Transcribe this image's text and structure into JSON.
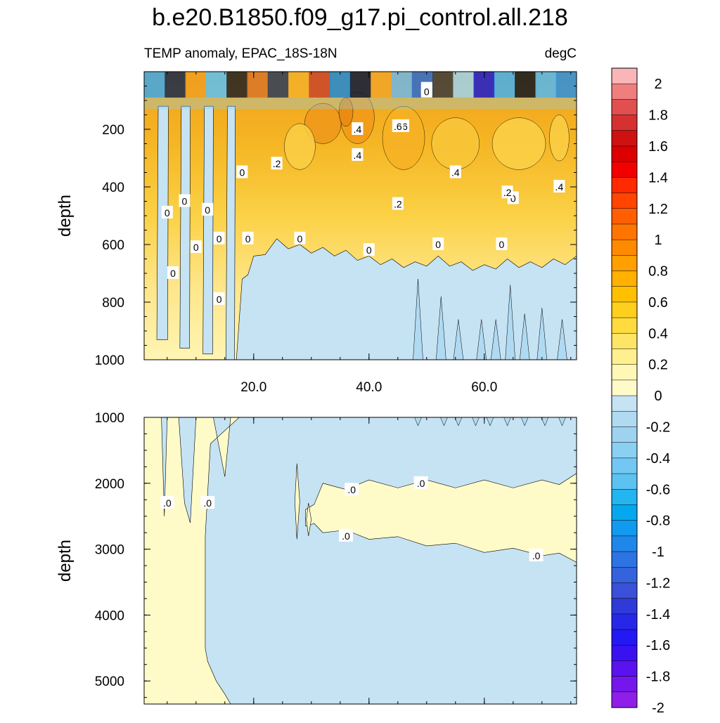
{
  "chart_data": {
    "type": "heatmap",
    "title": "b.e20.B1850.f09_g17.pi_control.all.218",
    "subtitle_left": "TEMP anomaly, EPAC_18S-18N",
    "subtitle_right": "degC",
    "x_range": [
      1,
      76
    ],
    "x_ticks": [
      20,
      40,
      60
    ],
    "x_tick_labels": [
      "20.0",
      "40.0",
      "60.0"
    ],
    "upper_panel": {
      "ylabel": "depth",
      "ylim": [
        1000,
        0
      ],
      "y_ticks": [
        200,
        400,
        600,
        800,
        1000
      ],
      "y_tick_labels": [
        "200",
        "400",
        "600",
        "800",
        "1000"
      ],
      "contour_labels": [
        "0",
        "0",
        "0",
        "0",
        "0",
        "0",
        "0",
        "0",
        "0",
        "0",
        "0",
        "0",
        "0",
        "0",
        "0",
        ".2",
        ".2",
        ".2",
        ".4",
        ".4",
        ".4",
        ".4",
        ".6",
        ".6",
        "0"
      ],
      "zero_contour_depth_by_x": [
        [
          1,
          1000
        ],
        [
          4,
          1000
        ],
        [
          6,
          1000
        ],
        [
          8,
          1000
        ],
        [
          10,
          1000
        ],
        [
          14,
          1000
        ],
        [
          17,
          1000
        ],
        [
          18,
          720
        ],
        [
          20,
          640
        ],
        [
          24,
          580
        ],
        [
          28,
          600
        ],
        [
          32,
          610
        ],
        [
          36,
          620
        ],
        [
          40,
          640
        ],
        [
          44,
          650
        ],
        [
          48,
          660
        ],
        [
          52,
          640
        ],
        [
          56,
          660
        ],
        [
          60,
          670
        ],
        [
          64,
          650
        ],
        [
          68,
          660
        ],
        [
          72,
          650
        ],
        [
          76,
          640
        ]
      ]
    },
    "lower_panel": {
      "ylabel": "depth",
      "ylim": [
        5350,
        1000
      ],
      "y_ticks": [
        1000,
        2000,
        3000,
        4000,
        5000
      ],
      "y_tick_labels": [
        "1000",
        "2000",
        "3000",
        "4000",
        "5000"
      ],
      "contour_labels": [
        ".0",
        ".0",
        ".0",
        ".0",
        ".0",
        ".0"
      ],
      "warm_band_top_by_x": [
        [
          29,
          2400
        ],
        [
          32,
          2000
        ],
        [
          40,
          1950
        ],
        [
          50,
          1950
        ],
        [
          60,
          1950
        ],
        [
          70,
          1950
        ],
        [
          76,
          1850
        ]
      ],
      "warm_band_bottom_by_x": [
        [
          29,
          2650
        ],
        [
          32,
          2750
        ],
        [
          40,
          2850
        ],
        [
          50,
          2950
        ],
        [
          60,
          3050
        ],
        [
          70,
          3100
        ],
        [
          76,
          3200
        ]
      ]
    },
    "colorbar": {
      "labels": [
        "2",
        "1.8",
        "1.6",
        "1.4",
        "1.2",
        "1",
        "0.8",
        "0.6",
        "0.4",
        "0.2",
        "0",
        "-0.2",
        "-0.4",
        "-0.6",
        "-0.8",
        "-1",
        "-1.2",
        "-1.4",
        "-1.6",
        "-1.8",
        "-2"
      ],
      "colors": [
        "#f9b5b8",
        "#ef7f7f",
        "#e24f4f",
        "#d53131",
        "#cf1111",
        "#dc0000",
        "#f20000",
        "#ff2a00",
        "#ff4500",
        "#ff5f00",
        "#ff7500",
        "#ff8a00",
        "#ff9f00",
        "#ffb000",
        "#ffc000",
        "#ffcf1e",
        "#ffdb40",
        "#ffe566",
        "#fff08f",
        "#fff7b5",
        "#fffbc8",
        "#c6e3f4",
        "#b0daf1",
        "#9dd3ef",
        "#8ad0f2",
        "#72c8f2",
        "#5cc2f2",
        "#22b5f0",
        "#05a8ee",
        "#119af0",
        "#1f86ea",
        "#2d73e3",
        "#3562dd",
        "#3a50d9",
        "#2f3ad8",
        "#2727e8",
        "#2418f3",
        "#3a12f0",
        "#5a12ee",
        "#7416ec",
        "#8f1fe8"
      ]
    }
  }
}
